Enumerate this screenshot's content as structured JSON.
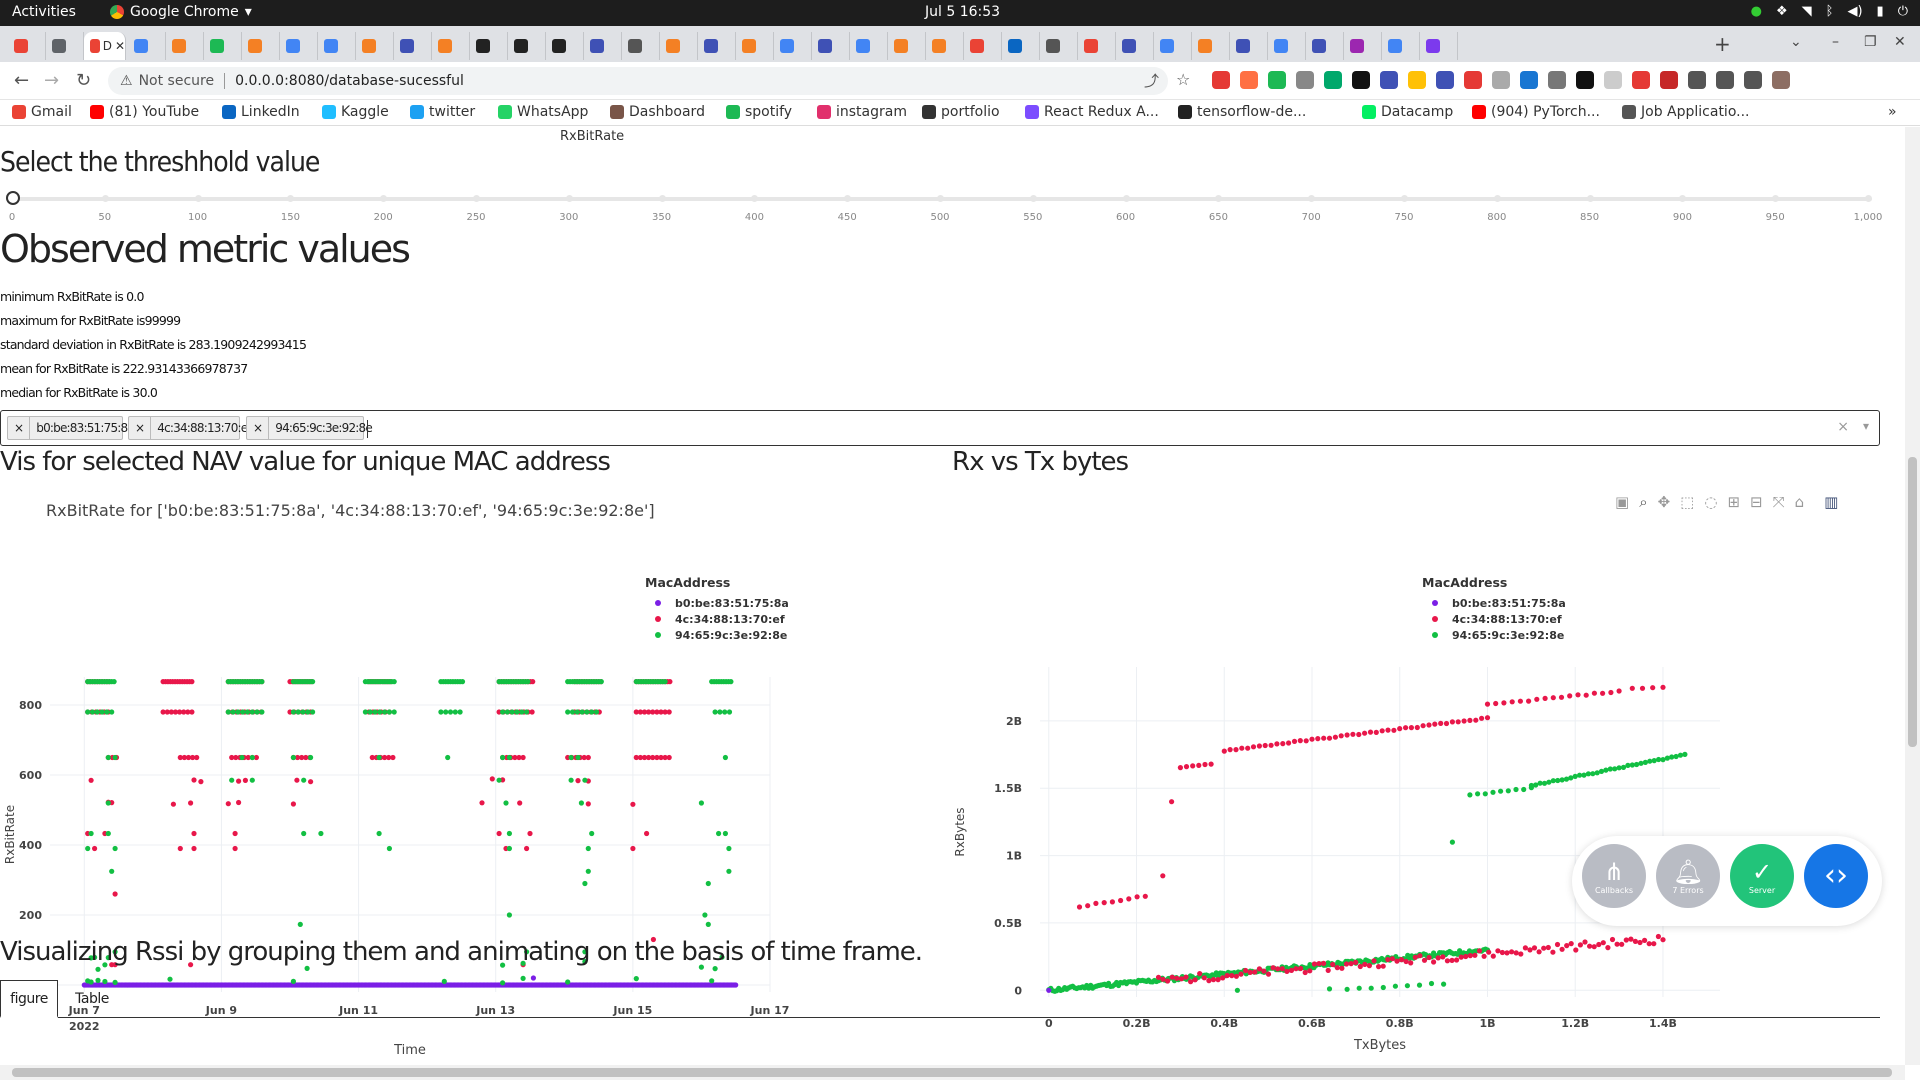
{
  "os": {
    "activities": "Activities",
    "app_name": "Google Chrome",
    "clock": "Jul 5  16:53"
  },
  "browser": {
    "tab_active_label": "D",
    "url_warning": "Not secure",
    "url": "0.0.0.0:8080/database-sucessful",
    "bookmarks": [
      "Gmail",
      "(81) YouTube",
      "LinkedIn",
      "Kaggle",
      "twitter",
      "WhatsApp",
      "Dashboard",
      "spotify",
      "instagram",
      "portfolio",
      "React Redux A...",
      "tensorflow-de...",
      "Datacamp",
      "(904) PyTorch...",
      "Job Applicatio..."
    ]
  },
  "page": {
    "top_chart_label": "RxBitRate",
    "threshold_heading": "Select the threshhold value",
    "slider": {
      "value": 0,
      "marks": [
        "0",
        "50",
        "100",
        "150",
        "200",
        "250",
        "300",
        "350",
        "400",
        "450",
        "500",
        "550",
        "600",
        "650",
        "700",
        "750",
        "800",
        "850",
        "900",
        "950",
        "1,000"
      ]
    },
    "observed_heading": "Observed metric values",
    "stats": [
      "minimum RxBitRate is 0.0",
      "maximum for RxBitRate is99999",
      "standard deviation in RxBitRate is 283.1909242993415",
      "mean for RxBitRate is 222.93143366978737",
      "median for RxBitRate is 30.0"
    ],
    "dropdown": {
      "selected": [
        "b0:be:83:51:75:8a",
        "4c:34:88:13:70:ef",
        "94:65:9c:3e:92:8e"
      ],
      "clear": "×",
      "arrow": "▾",
      "chip_remove": "×"
    },
    "vis_heading": "Vis for selected NAV value for unique MAC address",
    "rxtx_heading": "Rx vs Tx bytes",
    "rssi_heading": "Visualizing Rssi by grouping them and animating on the basis of time frame.",
    "tabs": [
      "figure",
      "Table"
    ],
    "devtools": {
      "callbacks": "Callbacks",
      "errors": "7 Errors",
      "server": "Server"
    }
  },
  "colors": {
    "series_b0": "#7b1fe6",
    "series_4c": "#e8174a",
    "series_94": "#12bf43",
    "devtools_grey": "#b9bcc4",
    "devtools_green": "#22c47a",
    "devtools_blue": "#1676e6"
  },
  "chart_data": [
    {
      "type": "scatter",
      "title": "RxBitRate for ['b0:be:83:51:75:8a', '4c:34:88:13:70:ef', '94:65:9c:3e:92:8e']",
      "xlabel": "Time",
      "ylabel": "RxBitRate",
      "x_ticks": [
        "Jun 7",
        "Jun 9",
        "Jun 11",
        "Jun 13",
        "Jun 15",
        "Jun 17"
      ],
      "x_year": "2022",
      "y_ticks": [
        "0",
        "200",
        "400",
        "600",
        "800"
      ],
      "ylim": [
        -20,
        880
      ],
      "xlim": [
        "2022-06-06T12:00",
        "2022-06-17T00:00"
      ],
      "legend_title": "MacAddress",
      "legend_position": "top-right",
      "series": [
        {
          "name": "b0:be:83:51:75:8a",
          "note": "mostly 0 across entire time range",
          "values_summary": [
            0,
            20
          ]
        },
        {
          "name": "4c:34:88:13:70:ef",
          "levels": [
            867,
            780,
            650,
            585,
            520,
            433,
            390,
            260,
            130,
            58,
            0
          ]
        },
        {
          "name": "94:65:9c:3e:92:8e",
          "levels": [
            867,
            780,
            650,
            585,
            520,
            433,
            390,
            325,
            173,
            100,
            58,
            0
          ]
        }
      ]
    },
    {
      "type": "scatter",
      "xlabel": "TxBytes",
      "ylabel": "RxBytes",
      "x_ticks": [
        "0",
        "0.2B",
        "0.4B",
        "0.6B",
        "0.8B",
        "1B",
        "1.2B",
        "1.4B"
      ],
      "y_ticks": [
        "0",
        "0.5B",
        "1B",
        "1.5B",
        "2B"
      ],
      "xlim": [
        -0.02,
        1.53
      ],
      "ylim": [
        -0.05,
        2.4
      ],
      "legend_title": "MacAddress",
      "legend_position": "top-right",
      "series": [
        {
          "name": "b0:be:83:51:75:8a",
          "points": [
            [
              0,
              0
            ],
            [
              0.05,
              0.01
            ]
          ]
        },
        {
          "name": "4c:34:88:13:70:ef",
          "segments": [
            {
              "from": [
                0.07,
                0.62
              ],
              "to": [
                0.22,
                0.7
              ]
            },
            {
              "from": [
                0.3,
                1.65
              ],
              "to": [
                0.38,
                1.68
              ]
            },
            {
              "from": [
                0.4,
                1.78
              ],
              "to": [
                1.0,
                2.02
              ]
            },
            {
              "from": [
                1.0,
                2.1
              ],
              "to": [
                1.4,
                2.25
              ]
            },
            {
              "from": [
                0.0,
                0.0
              ],
              "to": [
                1.4,
                0.38
              ]
            }
          ]
        },
        {
          "name": "94:65:9c:3e:92:8e",
          "segments": [
            {
              "from": [
                0.0,
                0.0
              ],
              "to": [
                1.0,
                0.3
              ]
            },
            {
              "from": [
                0.93,
                1.1
              ],
              "to": [
                1.0,
                1.45
              ]
            },
            {
              "from": [
                1.0,
                1.48
              ],
              "to": [
                1.45,
                1.75
              ]
            },
            {
              "from": [
                0.68,
                0.02
              ],
              "to": [
                0.9,
                0.05
              ]
            }
          ]
        }
      ]
    }
  ]
}
